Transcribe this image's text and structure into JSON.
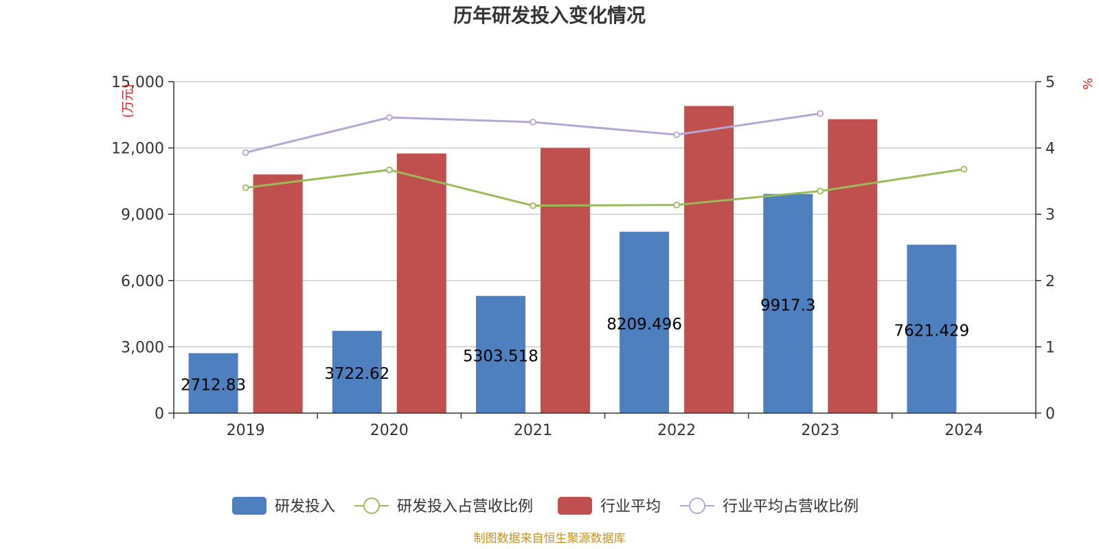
{
  "chart_data": {
    "type": "bar",
    "title": "历年研发投入变化情况",
    "categories": [
      "2019",
      "2020",
      "2021",
      "2022",
      "2023",
      "2024"
    ],
    "y_left": {
      "unit": "(万元)",
      "ylim": [
        0,
        15000
      ],
      "ticks": [
        "0",
        "3,000",
        "6,000",
        "9,000",
        "12,000",
        "15,000"
      ]
    },
    "y_right": {
      "unit": "%",
      "ylim": [
        0,
        5
      ],
      "ticks": [
        "0",
        "1",
        "2",
        "3",
        "4",
        "5"
      ]
    },
    "series": [
      {
        "name": "研发投入",
        "kind": "bar",
        "axis": "left",
        "color": "#4e7fbf",
        "values": [
          2712.83,
          3722.62,
          5303.518,
          8209.496,
          9917.3,
          7621.429
        ],
        "labels": [
          "2712.83",
          "3722.62",
          "5303.518",
          "8209.496",
          "9917.3",
          "7621.429"
        ]
      },
      {
        "name": "研发投入占营收比例",
        "kind": "line",
        "axis": "right",
        "color": "#9bbb59",
        "values": [
          3.4,
          3.67,
          3.13,
          3.14,
          3.35,
          3.68
        ]
      },
      {
        "name": "行业平均",
        "kind": "bar",
        "axis": "left",
        "color": "#c0504d",
        "values": [
          10800,
          11750,
          12000,
          13900,
          13300,
          null
        ]
      },
      {
        "name": "行业平均占营收比例",
        "kind": "line",
        "axis": "right",
        "color": "#b4a7d6",
        "values": [
          3.93,
          4.46,
          4.39,
          4.2,
          4.52,
          null
        ]
      }
    ],
    "grid": true,
    "legend_position": "bottom"
  },
  "source_note": "制图数据来自恒生聚源数据库"
}
